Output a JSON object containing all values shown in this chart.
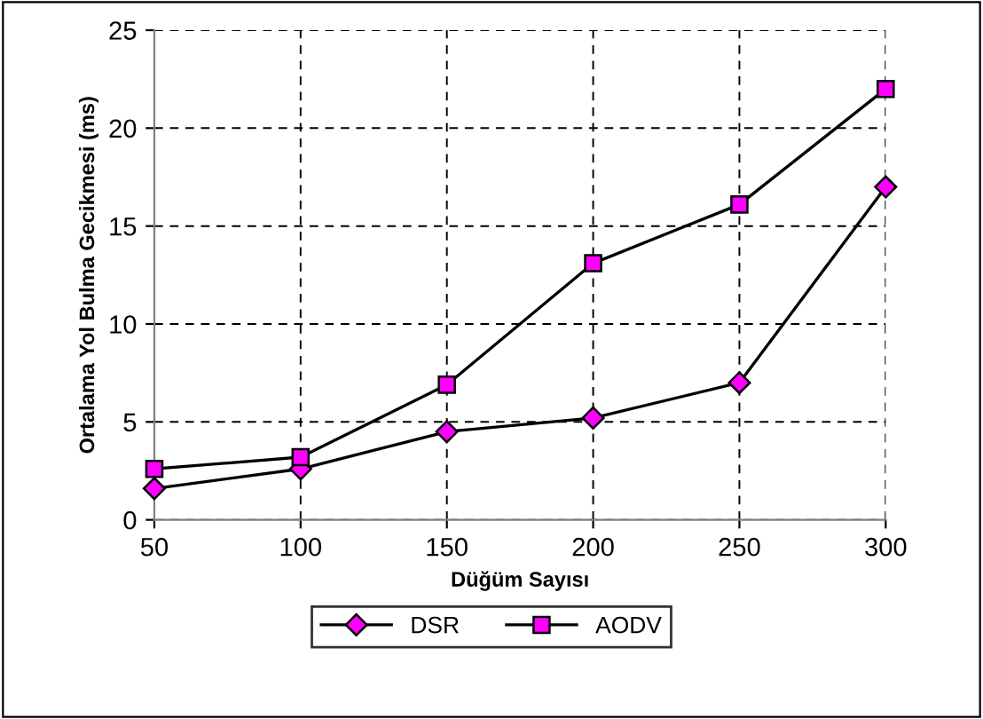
{
  "chart_data": {
    "type": "line",
    "xlabel": "Düğüm Sayısı",
    "ylabel": "Ortalama Yol Bulma Gecikmesi (ms)",
    "x": [
      50,
      100,
      150,
      200,
      250,
      300
    ],
    "series": [
      {
        "name": "DSR",
        "color": "#ff00ff",
        "marker": "diamond",
        "values": [
          1.6,
          2.6,
          4.5,
          5.2,
          7.0,
          17.0
        ]
      },
      {
        "name": "AODV",
        "color": "#ff00ff",
        "marker": "square",
        "values": [
          2.6,
          3.2,
          6.9,
          13.1,
          16.1,
          22.0
        ]
      }
    ],
    "xlim": [
      50,
      300
    ],
    "xticks": [
      50,
      100,
      150,
      200,
      250,
      300
    ],
    "ylim": [
      0,
      25
    ],
    "yticks": [
      0,
      5,
      10,
      15,
      20,
      25
    ],
    "grid": true,
    "legend": "bottom",
    "line_style": "solid"
  }
}
